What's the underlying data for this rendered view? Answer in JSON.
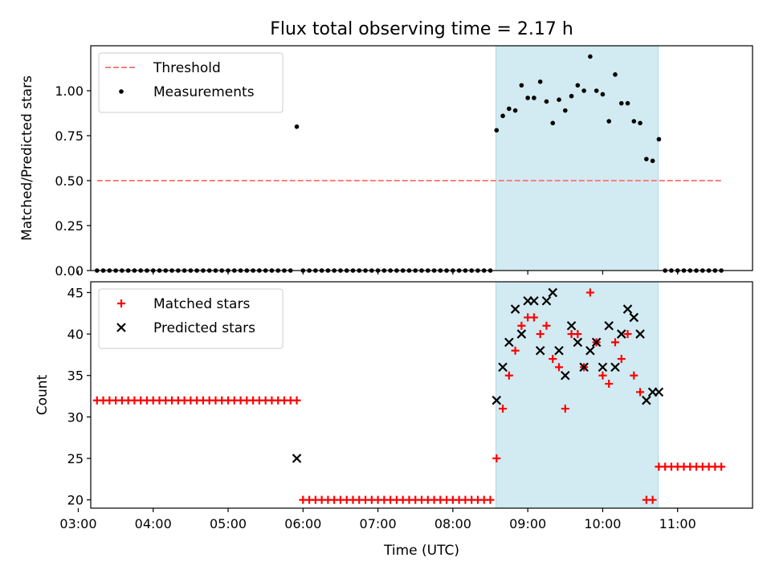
{
  "chart_data": {
    "title": "Flux total observing time = 2.17 h",
    "x_axis": {
      "label": "Time (UTC)",
      "unit": "minutes since 00:00 UTC",
      "range": [
        190,
        720
      ],
      "ticks": [
        {
          "value": 180,
          "label": "03:00"
        },
        {
          "value": 240,
          "label": "04:00"
        },
        {
          "value": 300,
          "label": "05:00"
        },
        {
          "value": 360,
          "label": "06:00"
        },
        {
          "value": 420,
          "label": "07:00"
        },
        {
          "value": 480,
          "label": "08:00"
        },
        {
          "value": 540,
          "label": "09:00"
        },
        {
          "value": 600,
          "label": "10:00"
        },
        {
          "value": 660,
          "label": "11:00"
        }
      ]
    },
    "shaded_span": {
      "x": [
        514.5,
        644.5
      ],
      "color": "#add8e6"
    },
    "panels": [
      {
        "type": "scatter",
        "ylabel": "Matched/Predicted stars",
        "ylim": [
          0,
          1.25
        ],
        "yticks": [
          {
            "value": 0,
            "label": "0.00"
          },
          {
            "value": 0.25,
            "label": "0.25"
          },
          {
            "value": 0.5,
            "label": "0.50"
          },
          {
            "value": 0.75,
            "label": "0.75"
          },
          {
            "value": 1.0,
            "label": "1.00"
          }
        ],
        "legend": {
          "position": "upper left"
        },
        "series": [
          {
            "name": "Threshold",
            "type": "line",
            "style": "dashed",
            "color": "#ff7f7f",
            "x": [
              195,
              695
            ],
            "y": [
              0.5,
              0.5
            ]
          },
          {
            "name": "Measurements",
            "type": "scatter",
            "marker": "dot",
            "color": "#000000",
            "x": [
              195,
              200,
              205,
              210,
              215,
              220,
              225,
              230,
              235,
              240,
              245,
              250,
              255,
              260,
              265,
              270,
              275,
              280,
              285,
              290,
              295,
              300,
              305,
              310,
              315,
              320,
              325,
              330,
              335,
              340,
              345,
              350,
              355,
              360,
              365,
              370,
              375,
              380,
              385,
              390,
              395,
              400,
              405,
              410,
              415,
              420,
              425,
              430,
              435,
              440,
              445,
              450,
              455,
              460,
              465,
              470,
              475,
              480,
              485,
              490,
              495,
              500,
              505,
              510,
              515,
              520,
              525,
              530,
              535,
              540,
              545,
              550,
              555,
              560,
              565,
              570,
              575,
              580,
              585,
              590,
              595,
              600,
              605,
              610,
              615,
              620,
              625,
              630,
              635,
              640,
              645,
              650,
              655,
              660,
              665,
              670,
              675,
              680,
              685,
              690,
              695
            ],
            "y": [
              0,
              0,
              0,
              0,
              0,
              0,
              0,
              0,
              0,
              0,
              0,
              0,
              0,
              0,
              0,
              0,
              0,
              0,
              0,
              0,
              0,
              0,
              0,
              0,
              0,
              0,
              0,
              0,
              0,
              0,
              0,
              0,
              0.8,
              0,
              0,
              0,
              0,
              0,
              0,
              0,
              0,
              0,
              0,
              0,
              0,
              0,
              0,
              0,
              0,
              0,
              0,
              0,
              0,
              0,
              0,
              0,
              0,
              0,
              0,
              0,
              0,
              0,
              0,
              0,
              0.78,
              0.86,
              0.9,
              0.89,
              1.03,
              0.96,
              0.96,
              1.05,
              0.94,
              0.82,
              0.95,
              0.89,
              0.97,
              1.03,
              1.0,
              1.19,
              1.0,
              0.98,
              0.83,
              1.09,
              0.93,
              0.93,
              0.83,
              0.82,
              0.62,
              0.61,
              0.73,
              0,
              0,
              0,
              0,
              0,
              0,
              0,
              0,
              0,
              0
            ]
          }
        ]
      },
      {
        "type": "scatter",
        "ylabel": "Count",
        "ylim": [
          19,
          46.3
        ],
        "yticks": [
          {
            "value": 20,
            "label": "20"
          },
          {
            "value": 25,
            "label": "25"
          },
          {
            "value": 30,
            "label": "30"
          },
          {
            "value": 35,
            "label": "35"
          },
          {
            "value": 40,
            "label": "40"
          },
          {
            "value": 45,
            "label": "45"
          }
        ],
        "legend": {
          "position": "upper left"
        },
        "series": [
          {
            "name": "Matched stars",
            "type": "scatter",
            "marker": "plus",
            "color": "#ff0000",
            "x": [
              195,
              200,
              205,
              210,
              215,
              220,
              225,
              230,
              235,
              240,
              245,
              250,
              255,
              260,
              265,
              270,
              275,
              280,
              285,
              290,
              295,
              300,
              305,
              310,
              315,
              320,
              325,
              330,
              335,
              340,
              345,
              350,
              355,
              360,
              365,
              370,
              375,
              380,
              385,
              390,
              395,
              400,
              405,
              410,
              415,
              420,
              425,
              430,
              435,
              440,
              445,
              450,
              455,
              460,
              465,
              470,
              475,
              480,
              485,
              490,
              495,
              500,
              505,
              510,
              515,
              520,
              525,
              530,
              535,
              540,
              545,
              550,
              555,
              560,
              565,
              570,
              575,
              580,
              585,
              590,
              595,
              600,
              605,
              610,
              615,
              620,
              625,
              630,
              635,
              640,
              645,
              650,
              655,
              660,
              665,
              670,
              675,
              680,
              685,
              690,
              695
            ],
            "y": [
              32,
              32,
              32,
              32,
              32,
              32,
              32,
              32,
              32,
              32,
              32,
              32,
              32,
              32,
              32,
              32,
              32,
              32,
              32,
              32,
              32,
              32,
              32,
              32,
              32,
              32,
              32,
              32,
              32,
              32,
              32,
              32,
              32,
              20,
              20,
              20,
              20,
              20,
              20,
              20,
              20,
              20,
              20,
              20,
              20,
              20,
              20,
              20,
              20,
              20,
              20,
              20,
              20,
              20,
              20,
              20,
              20,
              20,
              20,
              20,
              20,
              20,
              20,
              20,
              25,
              31,
              35,
              38,
              41,
              42,
              42,
              40,
              41,
              37,
              36,
              31,
              40,
              40,
              36,
              45,
              39,
              35,
              34,
              39,
              37,
              40,
              35,
              33,
              20,
              20,
              24,
              24,
              24,
              24,
              24,
              24,
              24,
              24,
              24,
              24,
              24
            ]
          },
          {
            "name": "Predicted stars",
            "type": "scatter",
            "marker": "x",
            "color": "#000000",
            "x": [
              355,
              515,
              520,
              525,
              530,
              535,
              540,
              545,
              550,
              555,
              560,
              565,
              570,
              575,
              580,
              585,
              590,
              595,
              600,
              605,
              610,
              615,
              620,
              625,
              630,
              635,
              640,
              645
            ],
            "y": [
              25,
              32,
              36,
              39,
              43,
              40,
              44,
              44,
              38,
              44,
              45,
              38,
              35,
              41,
              39,
              36,
              38,
              39,
              36,
              41,
              36,
              40,
              43,
              42,
              40,
              32,
              33,
              33
            ]
          }
        ]
      }
    ]
  }
}
